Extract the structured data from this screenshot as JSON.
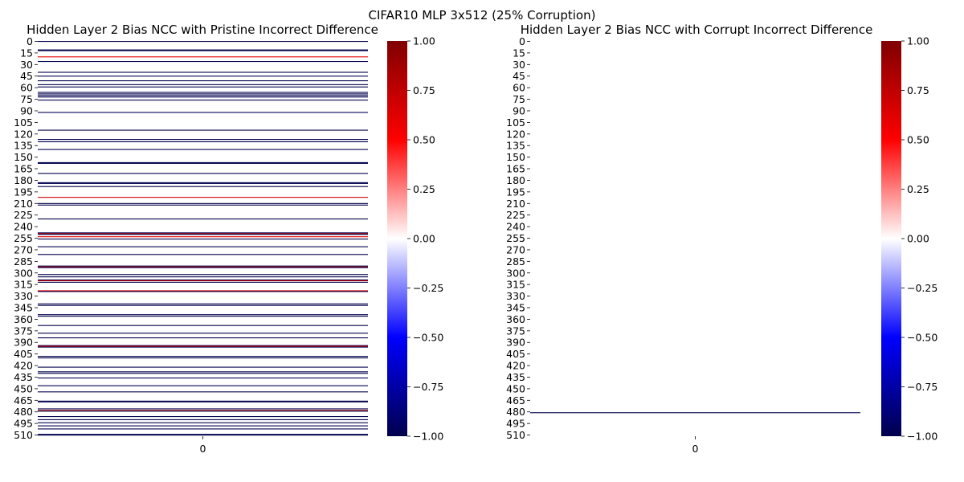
{
  "suptitle": "CIFAR10 MLP 3x512 (25% Corruption)",
  "colormap": {
    "name": "seismic",
    "stops": [
      {
        "v": -1.0,
        "color": "#00004d"
      },
      {
        "v": -0.5,
        "color": "#0000ff"
      },
      {
        "v": 0.0,
        "color": "#ffffff"
      },
      {
        "v": 0.5,
        "color": "#ff0000"
      },
      {
        "v": 1.0,
        "color": "#800000"
      }
    ]
  },
  "chart_data": [
    {
      "type": "heatmap",
      "title": "Hidden Layer 2 Bias NCC with Pristine Incorrect Difference",
      "rows": 512,
      "columns": [
        "0"
      ],
      "vmin": -1.0,
      "vmax": 1.0,
      "background_value": 0.0,
      "y_tick_labels": [
        "0",
        "15",
        "30",
        "45",
        "60",
        "75",
        "90",
        "105",
        "120",
        "135",
        "150",
        "165",
        "180",
        "195",
        "210",
        "225",
        "240",
        "255",
        "270",
        "285",
        "300",
        "315",
        "330",
        "345",
        "360",
        "375",
        "390",
        "405",
        "420",
        "435",
        "450",
        "465",
        "480",
        "495",
        "510"
      ],
      "colorbar_ticks": [
        "1.00",
        "0.75",
        "0.50",
        "0.25",
        "0.00",
        "−0.25",
        "−0.50",
        "−0.75",
        "−1.00"
      ],
      "nonzero_cells": [
        {
          "row": 0,
          "value": -1
        },
        {
          "row": 11,
          "value": -1
        },
        {
          "row": 12,
          "value": -1
        },
        {
          "row": 20,
          "value": 0.6
        },
        {
          "row": 26,
          "value": -1
        },
        {
          "row": 40,
          "value": -1
        },
        {
          "row": 45,
          "value": -1
        },
        {
          "row": 51,
          "value": -1
        },
        {
          "row": 56,
          "value": -1
        },
        {
          "row": 59,
          "value": -1
        },
        {
          "row": 66,
          "value": -1
        },
        {
          "row": 68,
          "value": -1
        },
        {
          "row": 70,
          "value": -1
        },
        {
          "row": 72,
          "value": -1
        },
        {
          "row": 76,
          "value": -1
        },
        {
          "row": 92,
          "value": -1
        },
        {
          "row": 115,
          "value": -1
        },
        {
          "row": 127,
          "value": -1
        },
        {
          "row": 130,
          "value": -1
        },
        {
          "row": 140,
          "value": -1
        },
        {
          "row": 157,
          "value": -1
        },
        {
          "row": 158,
          "value": -1
        },
        {
          "row": 171,
          "value": -1
        },
        {
          "row": 183,
          "value": -1
        },
        {
          "row": 184,
          "value": -1
        },
        {
          "row": 188,
          "value": -1
        },
        {
          "row": 202,
          "value": 0.7
        },
        {
          "row": 210,
          "value": -1
        },
        {
          "row": 212,
          "value": -1
        },
        {
          "row": 230,
          "value": -1
        },
        {
          "row": 248,
          "value": -1
        },
        {
          "row": 249,
          "value": 0.8
        },
        {
          "row": 250,
          "value": -1
        },
        {
          "row": 253,
          "value": 0.6
        },
        {
          "row": 256,
          "value": -1
        },
        {
          "row": 266,
          "value": -1
        },
        {
          "row": 276,
          "value": -1
        },
        {
          "row": 291,
          "value": -1
        },
        {
          "row": 292,
          "value": 0.8
        },
        {
          "row": 293,
          "value": -1
        },
        {
          "row": 302,
          "value": -1
        },
        {
          "row": 305,
          "value": -1
        },
        {
          "row": 309,
          "value": -1
        },
        {
          "row": 310,
          "value": 0.7
        },
        {
          "row": 312,
          "value": -1
        },
        {
          "row": 323,
          "value": 0.6
        },
        {
          "row": 324,
          "value": -1
        },
        {
          "row": 340,
          "value": -1
        },
        {
          "row": 342,
          "value": -1
        },
        {
          "row": 354,
          "value": -1
        },
        {
          "row": 356,
          "value": -1
        },
        {
          "row": 368,
          "value": -1
        },
        {
          "row": 378,
          "value": -1
        },
        {
          "row": 384,
          "value": -1
        },
        {
          "row": 394,
          "value": -1
        },
        {
          "row": 395,
          "value": 0.6
        },
        {
          "row": 396,
          "value": -1
        },
        {
          "row": 408,
          "value": -1
        },
        {
          "row": 410,
          "value": -1
        },
        {
          "row": 422,
          "value": -1
        },
        {
          "row": 428,
          "value": -1
        },
        {
          "row": 430,
          "value": -1
        },
        {
          "row": 436,
          "value": -1
        },
        {
          "row": 446,
          "value": -1
        },
        {
          "row": 454,
          "value": -1
        },
        {
          "row": 466,
          "value": -1
        },
        {
          "row": 467,
          "value": -1
        },
        {
          "row": 476,
          "value": -1
        },
        {
          "row": 478,
          "value": 0.8
        },
        {
          "row": 479,
          "value": -1
        },
        {
          "row": 486,
          "value": -1
        },
        {
          "row": 490,
          "value": -1
        },
        {
          "row": 494,
          "value": -1
        },
        {
          "row": 498,
          "value": -1
        },
        {
          "row": 502,
          "value": -1
        },
        {
          "row": 509,
          "value": -1
        },
        {
          "row": 510,
          "value": -1
        }
      ]
    },
    {
      "type": "heatmap",
      "title": "Hidden Layer 2 Bias NCC with Corrupt Incorrect Difference",
      "rows": 512,
      "columns": [
        "0"
      ],
      "vmin": -1.0,
      "vmax": 1.0,
      "background_value": 0.0,
      "y_tick_labels": [
        "0",
        "15",
        "30",
        "45",
        "60",
        "75",
        "90",
        "105",
        "120",
        "135",
        "150",
        "165",
        "180",
        "195",
        "210",
        "225",
        "240",
        "255",
        "270",
        "285",
        "300",
        "315",
        "330",
        "345",
        "360",
        "375",
        "390",
        "405",
        "420",
        "435",
        "450",
        "465",
        "480",
        "495",
        "510"
      ],
      "colorbar_ticks": [
        "1.00",
        "0.75",
        "0.50",
        "0.25",
        "0.00",
        "−0.25",
        "−0.50",
        "−0.75",
        "−1.00"
      ],
      "nonzero_cells": [
        {
          "row": 481,
          "value": -1
        }
      ]
    }
  ]
}
